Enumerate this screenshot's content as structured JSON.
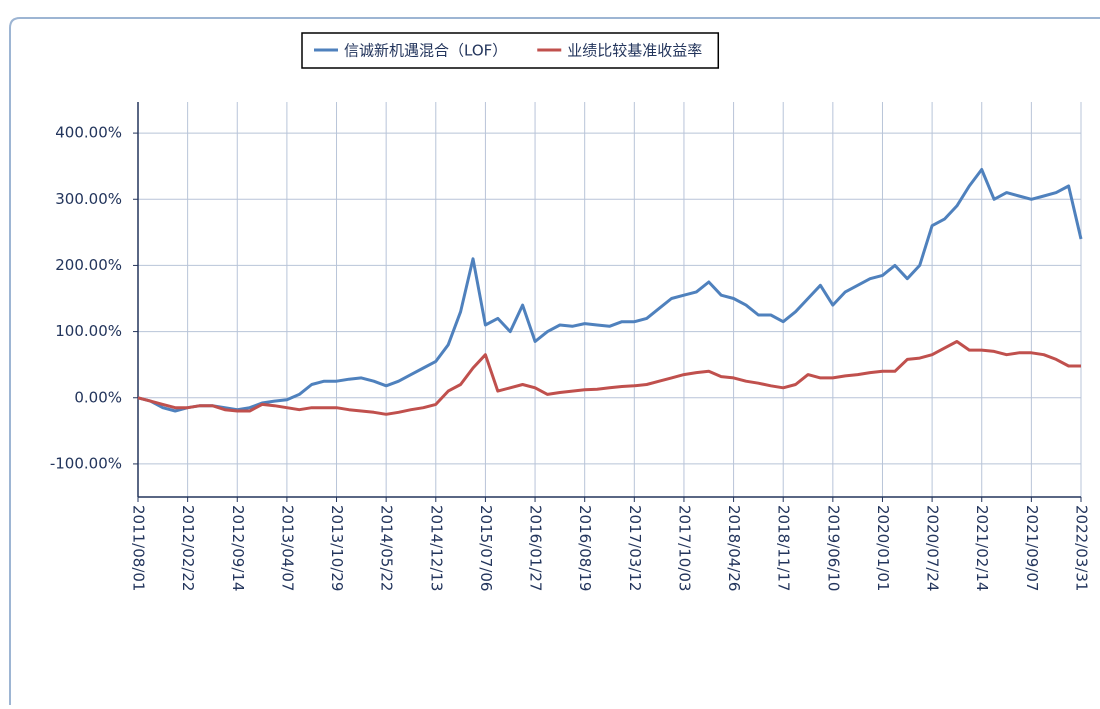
{
  "chart_data": {
    "type": "line",
    "categories": [
      "2011/08/01",
      null,
      null,
      null,
      "2012/02/22",
      null,
      null,
      null,
      "2012/09/14",
      null,
      null,
      null,
      "2013/04/07",
      null,
      null,
      null,
      "2013/10/29",
      null,
      null,
      null,
      "2014/05/22",
      null,
      null,
      null,
      "2014/12/13",
      null,
      null,
      null,
      "2015/07/06",
      null,
      null,
      null,
      "2016/01/27",
      null,
      null,
      null,
      "2016/08/19",
      null,
      null,
      null,
      "2017/03/12",
      null,
      null,
      null,
      "2017/10/03",
      null,
      null,
      null,
      "2018/04/26",
      null,
      null,
      null,
      "2018/11/17",
      null,
      null,
      null,
      "2019/06/10",
      null,
      null,
      null,
      "2020/01/01",
      null,
      null,
      null,
      "2020/07/24",
      null,
      null,
      null,
      "2021/02/14",
      null,
      null,
      null,
      "2021/09/07",
      null,
      null,
      null,
      "2022/03/31"
    ],
    "series": [
      {
        "name": "信诚新机遇混合（LOF）",
        "color": "#4f81bd",
        "values": [
          0,
          -5,
          -15,
          -20,
          -15,
          -12,
          -12,
          -15,
          -18,
          -15,
          -8,
          -5,
          -3,
          5,
          20,
          25,
          25,
          28,
          30,
          25,
          18,
          25,
          35,
          45,
          55,
          80,
          130,
          210,
          110,
          120,
          100,
          140,
          85,
          100,
          110,
          108,
          112,
          110,
          108,
          115,
          115,
          120,
          135,
          150,
          155,
          160,
          175,
          155,
          150,
          140,
          125,
          125,
          115,
          130,
          150,
          170,
          140,
          160,
          170,
          180,
          185,
          200,
          180,
          200,
          260,
          270,
          290,
          320,
          345,
          300,
          310,
          305,
          300,
          305,
          310,
          320,
          240
        ]
      },
      {
        "name": "业绩比较基准收益率",
        "color": "#c0504d",
        "values": [
          0,
          -5,
          -10,
          -15,
          -15,
          -12,
          -12,
          -18,
          -20,
          -20,
          -10,
          -12,
          -15,
          -18,
          -15,
          -15,
          -15,
          -18,
          -20,
          -22,
          -25,
          -22,
          -18,
          -15,
          -10,
          10,
          20,
          45,
          65,
          10,
          15,
          20,
          15,
          5,
          8,
          10,
          12,
          13,
          15,
          17,
          18,
          20,
          25,
          30,
          35,
          38,
          40,
          32,
          30,
          25,
          22,
          18,
          15,
          20,
          35,
          30,
          30,
          33,
          35,
          38,
          40,
          40,
          58,
          60,
          65,
          75,
          85,
          72,
          72,
          70,
          65,
          68,
          68,
          65,
          58,
          48,
          48
        ]
      }
    ],
    "ylim": [
      -150,
      447
    ],
    "yticks": [
      {
        "value": -100,
        "label": "-100.00%"
      },
      {
        "value": 0,
        "label": "0.00%"
      },
      {
        "value": 100,
        "label": "100.00%"
      },
      {
        "value": 200,
        "label": "200.00%"
      },
      {
        "value": 300,
        "label": "300.00%"
      },
      {
        "value": 400,
        "label": "400.00%"
      }
    ],
    "grid": true,
    "legend": "top"
  }
}
